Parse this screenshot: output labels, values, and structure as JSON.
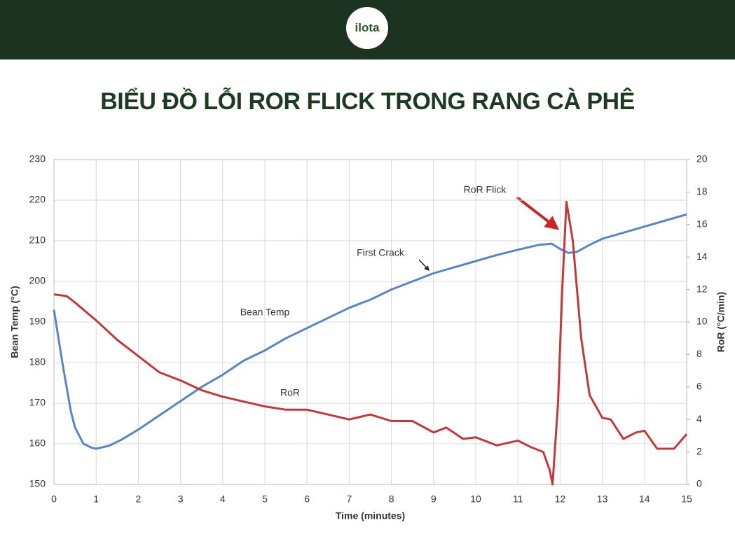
{
  "header": {
    "logo": "ilota"
  },
  "title": "BIỂU ĐỒ LỖI ROR FLICK TRONG RANG CÀ PHÊ",
  "chart_data": {
    "type": "line",
    "x_label": "Time (minutes)",
    "y_label": "Bean Temp (°C)",
    "y2_label": "RoR (°C/min)",
    "xlim": [
      0,
      15
    ],
    "xticks": [
      0,
      1,
      2,
      3,
      4,
      5,
      6,
      7,
      8,
      9,
      10,
      11,
      12,
      13,
      14,
      15
    ],
    "ylim": [
      150,
      230
    ],
    "yticks": [
      150,
      160,
      170,
      180,
      190,
      200,
      210,
      220,
      230
    ],
    "y2lim": [
      0,
      20
    ],
    "y2ticks": [
      0,
      2,
      4,
      6,
      8,
      10,
      12,
      14,
      16,
      18,
      20
    ],
    "grid": true,
    "annotations": [
      "First Crack",
      "RoR Flick"
    ],
    "series": [
      {
        "name": "Bean Temp",
        "color": "#5b84c4",
        "axis": "y",
        "x": [
          0,
          0.2,
          0.4,
          0.5,
          0.7,
          0.9,
          1,
          1.3,
          1.6,
          2,
          2.5,
          3,
          3.5,
          4,
          4.5,
          5,
          5.5,
          6,
          6.5,
          7,
          7.5,
          8,
          8.5,
          9,
          9.5,
          10,
          10.5,
          11,
          11.5,
          11.8,
          12,
          12.2,
          12.4,
          12.7,
          13,
          13.5,
          14,
          14.5,
          15
        ],
        "values": [
          193,
          180,
          168,
          164,
          160,
          159,
          158.8,
          159.5,
          161,
          163.5,
          167,
          170.5,
          174,
          177,
          180.5,
          183,
          186,
          188.5,
          191,
          193.5,
          195.5,
          198,
          200,
          202,
          203.5,
          205,
          206.5,
          207.8,
          209,
          209.3,
          208,
          207,
          207.3,
          209,
          210.5,
          212,
          213.5,
          215,
          216.5
        ]
      },
      {
        "name": "RoR",
        "color": "#c0393b",
        "axis": "y2",
        "x": [
          0,
          0.3,
          0.5,
          1,
          1.5,
          2,
          2.5,
          3,
          3.5,
          4,
          4.5,
          5,
          5.5,
          6,
          6.5,
          7,
          7.5,
          8,
          8.5,
          9,
          9.3,
          9.7,
          10,
          10.5,
          11,
          11.3,
          11.6,
          11.75,
          11.82,
          11.95,
          12.05,
          12.15,
          12.3,
          12.5,
          12.7,
          13,
          13.2,
          13.5,
          13.8,
          14,
          14.3,
          14.7,
          15
        ],
        "values": [
          11.7,
          11.6,
          11.2,
          10.1,
          8.9,
          7.9,
          6.9,
          6.4,
          5.8,
          5.4,
          5.1,
          4.8,
          4.6,
          4.6,
          4.3,
          4.0,
          4.3,
          3.9,
          3.9,
          3.2,
          3.5,
          2.8,
          2.9,
          2.4,
          2.7,
          2.3,
          2.0,
          0.9,
          0,
          5,
          12,
          17.4,
          15,
          9,
          5.5,
          4.1,
          4.0,
          2.8,
          3.2,
          3.3,
          2.2,
          2.2,
          3.1
        ]
      }
    ]
  }
}
